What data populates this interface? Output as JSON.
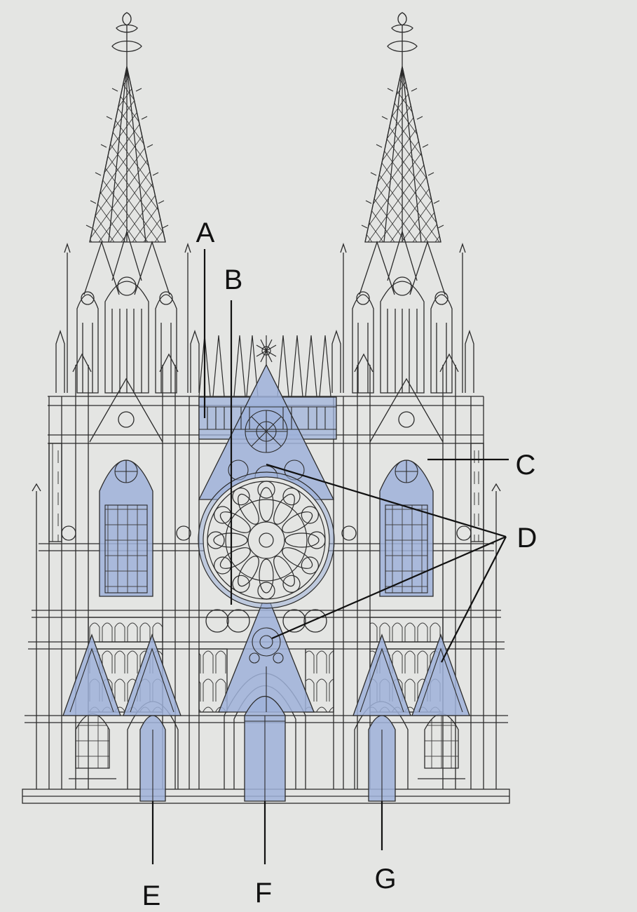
{
  "colors": {
    "paper": "#e4e5e3",
    "ink": "#2b2b2b",
    "highlight": "#9fb2d9"
  },
  "labels": {
    "a": "A",
    "b": "B",
    "c": "C",
    "d": "D",
    "e": "E",
    "f": "F",
    "g": "G"
  }
}
